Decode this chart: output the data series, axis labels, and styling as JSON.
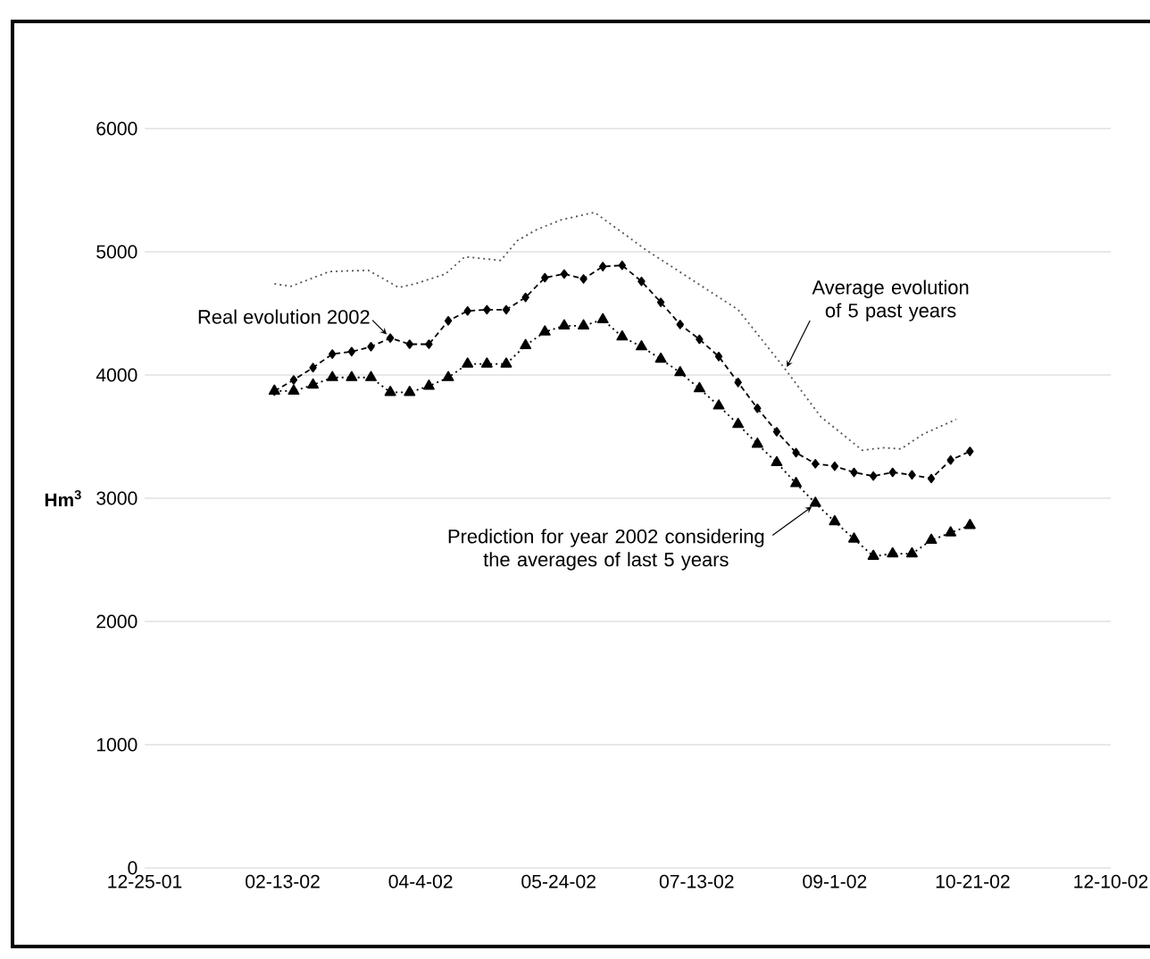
{
  "chart_data": {
    "type": "line",
    "ylabel": "Hm$^{3}$",
    "xlim": [
      "2001-12-25",
      "2002-12-10"
    ],
    "xticks": [
      {
        "value": "2001-12-25",
        "label": "12-25-01"
      },
      {
        "value": "2002-02-13",
        "label": "02-13-02"
      },
      {
        "value": "2002-04-04",
        "label": "04-4-02"
      },
      {
        "value": "2002-05-24",
        "label": "05-24-02"
      },
      {
        "value": "2002-07-13",
        "label": "07-13-02"
      },
      {
        "value": "2002-09-01",
        "label": "09-1-02"
      },
      {
        "value": "2002-10-21",
        "label": "10-21-02"
      },
      {
        "value": "2002-12-10",
        "label": "12-10-02"
      }
    ],
    "ylim": [
      0,
      6000
    ],
    "yticks": [
      0,
      1000,
      2000,
      3000,
      4000,
      5000,
      6000
    ],
    "grid": "y",
    "x": [
      "2002-02-10",
      "2002-02-17",
      "2002-02-24",
      "2002-03-03",
      "2002-03-10",
      "2002-03-17",
      "2002-03-24",
      "2002-03-31",
      "2002-04-07",
      "2002-04-14",
      "2002-04-21",
      "2002-04-28",
      "2002-05-05",
      "2002-05-12",
      "2002-05-19",
      "2002-05-26",
      "2002-06-02",
      "2002-06-09",
      "2002-06-16",
      "2002-06-23",
      "2002-06-30",
      "2002-07-07",
      "2002-07-14",
      "2002-07-21",
      "2002-07-28",
      "2002-08-04",
      "2002-08-11",
      "2002-08-18",
      "2002-08-25",
      "2002-09-01",
      "2002-09-08",
      "2002-09-15",
      "2002-09-22",
      "2002-09-29",
      "2002-10-06",
      "2002-10-13",
      "2002-10-20"
    ],
    "series": [
      {
        "color": "#000000",
        "marker": "diamond",
        "line_style": "dashed",
        "values": [
          3870,
          3960,
          4060,
          4170,
          4190,
          4230,
          4300,
          4250,
          4250,
          4440,
          4520,
          4530,
          4530,
          4630,
          4790,
          4820,
          4780,
          4880,
          4890,
          4760,
          4590,
          4410,
          4290,
          4150,
          3940,
          3730,
          3540,
          3370,
          3280,
          3260,
          3210,
          3180,
          3210,
          3190,
          3160,
          3310,
          3380
        ]
      },
      {
        "color": "#000000",
        "marker": "triangle",
        "line_style": "dotted",
        "values": [
          3870,
          3870,
          3920,
          3980,
          3980,
          3980,
          3860,
          3860,
          3910,
          3980,
          4090,
          4090,
          4090,
          4240,
          4350,
          4400,
          4400,
          4450,
          4310,
          4230,
          4130,
          4020,
          3890,
          3750,
          3600,
          3440,
          3290,
          3120,
          2960,
          2810,
          2670,
          2530,
          2550,
          2550,
          2660,
          2720,
          2780
        ]
      },
      {
        "color": "#555555",
        "marker": "none",
        "line_style": "dotted",
        "x": [
          "2002-02-10",
          "2002-02-16",
          "2002-03-02",
          "2002-03-16",
          "2002-03-20",
          "2002-03-27",
          "2002-04-02",
          "2002-04-13",
          "2002-04-20",
          "2002-05-03",
          "2002-05-09",
          "2002-05-16",
          "2002-05-25",
          "2002-06-06",
          "2002-06-25",
          "2002-07-28",
          "2002-08-14",
          "2002-08-27",
          "2002-09-11",
          "2002-09-19",
          "2002-09-25",
          "2002-10-03",
          "2002-10-15"
        ],
        "values": [
          4740,
          4720,
          4840,
          4850,
          4800,
          4710,
          4740,
          4820,
          4960,
          4930,
          5090,
          5180,
          5260,
          5320,
          5010,
          4530,
          4050,
          3660,
          3390,
          3410,
          3400,
          3520,
          3640
        ]
      }
    ],
    "annotations": [
      {
        "text": "Real evolution 2002",
        "x": "2002-03-24",
        "y": 4300
      },
      {
        "text": "Average evolution of 5 past years",
        "x": "2002-08-14",
        "y": 4050
      },
      {
        "text": "Prediction for year 2002 considering the averages of last 5 years",
        "x": "2002-08-25",
        "y": 2960
      }
    ]
  }
}
